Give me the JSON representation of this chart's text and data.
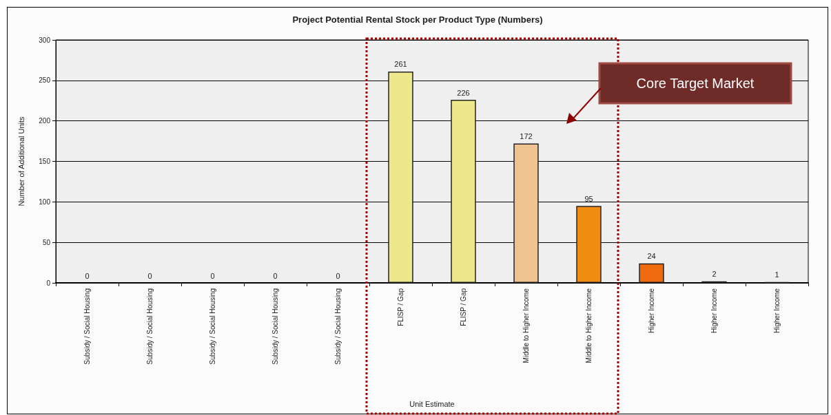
{
  "chart_data": {
    "type": "bar",
    "title": "Project Potential Rental Stock per Product Type (Numbers)",
    "xlabel": "Unit Estimate",
    "ylabel": "Number of Additional Units",
    "categories": [
      "Subsidy / Social Housing",
      "Subsidy / Social Housing",
      "Subsidy / Social Housing",
      "Subsidy / Social Housing",
      "Subsidy / Social Housing",
      "FLISP / Gap",
      "FLISP / Gap",
      "Middle to Higher Income",
      "Middle to Higher Income",
      "Higher Income",
      "Higher Income",
      "Higher Income"
    ],
    "values": [
      0,
      0,
      0,
      0,
      0,
      261,
      226,
      172,
      95,
      24,
      2,
      1
    ],
    "colors": [
      "#ede88a",
      "#ede88a",
      "#ede88a",
      "#ede88a",
      "#ede88a",
      "#ede88a",
      "#ede88a",
      "#f0c490",
      "#f08c10",
      "#f06a10",
      "#222222",
      "#222222"
    ],
    "ylim": [
      0,
      300
    ],
    "yticks": [
      0,
      50,
      100,
      150,
      200,
      250,
      300
    ],
    "grid": "y",
    "data_labels": true,
    "annotations": [
      "Core Target Market"
    ]
  }
}
